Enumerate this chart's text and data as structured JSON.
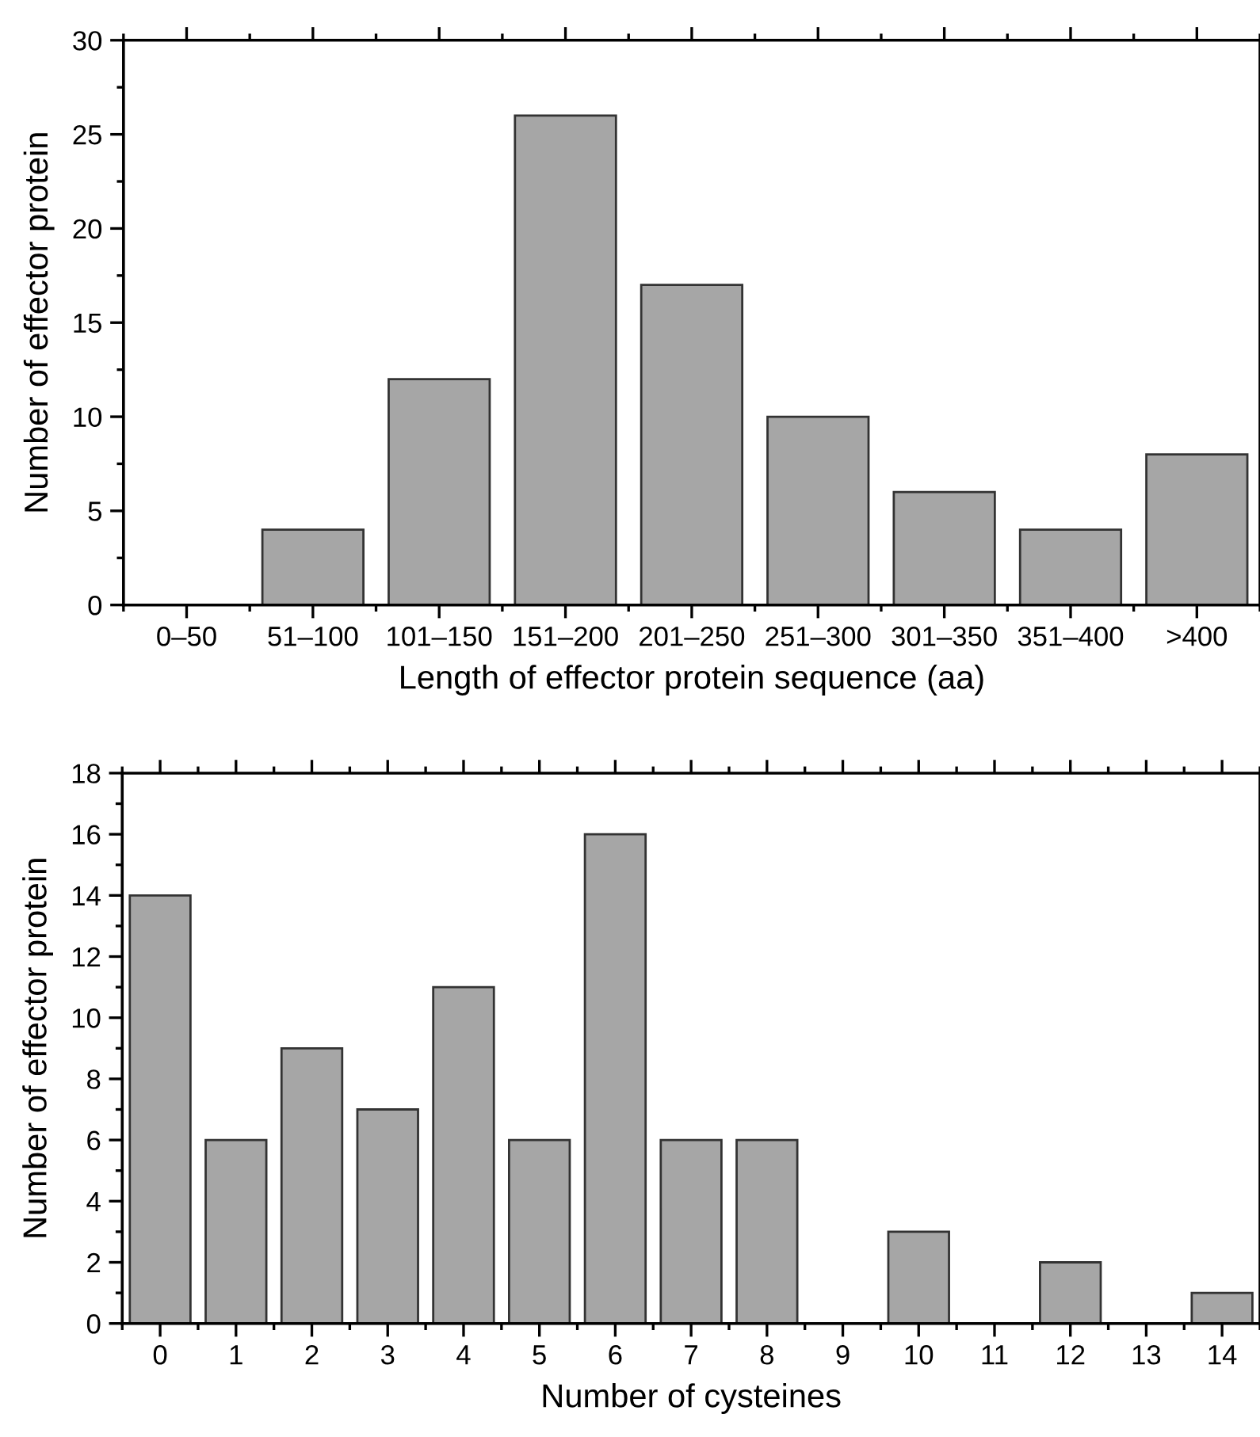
{
  "chart_data": [
    {
      "type": "bar",
      "xlabel": "Length of effector protein sequence (aa)",
      "ylabel": "Number of effector protein",
      "categories": [
        "0–50",
        "51–100",
        "101–150",
        "151–200",
        "201–250",
        "251–300",
        "301–350",
        "351–400",
        ">400"
      ],
      "values": [
        0,
        4,
        12,
        26,
        17,
        10,
        6,
        4,
        8
      ],
      "color": "#a6a6a6",
      "ylim": [
        0,
        30
      ],
      "yticks": [
        0,
        5,
        10,
        15,
        20,
        25,
        30
      ],
      "grid": false
    },
    {
      "type": "bar",
      "xlabel": "Number of cysteines",
      "ylabel": "Number of effector protein",
      "categories": [
        "0",
        "1",
        "2",
        "3",
        "4",
        "5",
        "6",
        "7",
        "8",
        "9",
        "10",
        "11",
        "12",
        "13",
        "14"
      ],
      "values": [
        14,
        6,
        9,
        7,
        11,
        6,
        16,
        6,
        6,
        0,
        3,
        0,
        2,
        0,
        1
      ],
      "color": "#a6a6a6",
      "ylim": [
        0,
        18
      ],
      "yticks": [
        0,
        2,
        4,
        6,
        8,
        10,
        12,
        14,
        16,
        18
      ],
      "grid": false
    }
  ]
}
